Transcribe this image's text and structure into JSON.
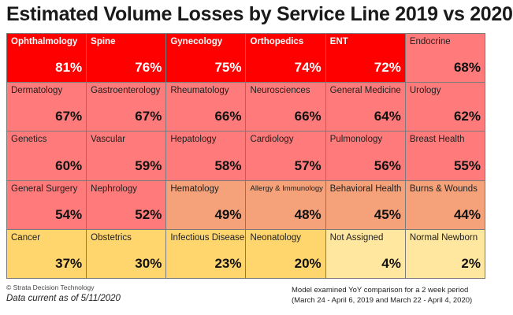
{
  "chart_data": {
    "type": "heatmap",
    "title": "Estimated Volume Losses by Service Line 2019 vs 2020",
    "cells": [
      {
        "label": "Ophthalmology",
        "value": 81,
        "display": "81%",
        "color": "#ff0000"
      },
      {
        "label": "Spine",
        "value": 76,
        "display": "76%",
        "color": "#ff0000"
      },
      {
        "label": "Gynecology",
        "value": 75,
        "display": "75%",
        "color": "#ff0000"
      },
      {
        "label": "Orthopedics",
        "value": 74,
        "display": "74%",
        "color": "#ff0000"
      },
      {
        "label": "ENT",
        "value": 72,
        "display": "72%",
        "color": "#ff0000"
      },
      {
        "label": "Endocrine",
        "value": 68,
        "display": "68%",
        "color": "#ff7a7a"
      },
      {
        "label": "Dermatology",
        "value": 67,
        "display": "67%",
        "color": "#ff7a7a"
      },
      {
        "label": "Gastroenterology",
        "value": 67,
        "display": "67%",
        "color": "#ff7a7a"
      },
      {
        "label": "Rheumatology",
        "value": 66,
        "display": "66%",
        "color": "#ff7a7a"
      },
      {
        "label": "Neurosciences",
        "value": 66,
        "display": "66%",
        "color": "#ff7a7a"
      },
      {
        "label": "General Medicine",
        "value": 64,
        "display": "64%",
        "color": "#ff7a7a"
      },
      {
        "label": "Urology",
        "value": 62,
        "display": "62%",
        "color": "#ff7a7a"
      },
      {
        "label": "Genetics",
        "value": 60,
        "display": "60%",
        "color": "#ff7a7a"
      },
      {
        "label": "Vascular",
        "value": 59,
        "display": "59%",
        "color": "#ff7a7a"
      },
      {
        "label": "Hepatology",
        "value": 58,
        "display": "58%",
        "color": "#ff7a7a"
      },
      {
        "label": "Cardiology",
        "value": 57,
        "display": "57%",
        "color": "#ff7a7a"
      },
      {
        "label": "Pulmonology",
        "value": 56,
        "display": "56%",
        "color": "#ff7a7a"
      },
      {
        "label": "Breast Health",
        "value": 55,
        "display": "55%",
        "color": "#ff7a7a"
      },
      {
        "label": "General Surgery",
        "value": 54,
        "display": "54%",
        "color": "#ff7a7a"
      },
      {
        "label": "Nephrology",
        "value": 52,
        "display": "52%",
        "color": "#ff7a7a"
      },
      {
        "label": "Hematology",
        "value": 49,
        "display": "49%",
        "color": "#f5a27a"
      },
      {
        "label": "Allergy & Immunology",
        "value": 48,
        "display": "48%",
        "color": "#f5a27a"
      },
      {
        "label": "Behavioral Health",
        "value": 45,
        "display": "45%",
        "color": "#f5a27a"
      },
      {
        "label": "Burns & Wounds",
        "value": 44,
        "display": "44%",
        "color": "#f5a27a"
      },
      {
        "label": "Cancer",
        "value": 37,
        "display": "37%",
        "color": "#ffd56e"
      },
      {
        "label": "Obstetrics",
        "value": 30,
        "display": "30%",
        "color": "#ffd56e"
      },
      {
        "label": "Infectious Disease",
        "value": 23,
        "display": "23%",
        "color": "#ffd56e"
      },
      {
        "label": "Neonatology",
        "value": 20,
        "display": "20%",
        "color": "#ffd56e"
      },
      {
        "label": "Not Assigned",
        "value": 4,
        "display": "4%",
        "color": "#ffe7a0"
      },
      {
        "label": "Normal Newborn",
        "value": 2,
        "display": "2%",
        "color": "#ffe7a0"
      }
    ]
  },
  "footer": {
    "copyright": "© Strata Decision Technology",
    "data_current": "Data current as of 5/11/2020",
    "note_line1": "Model examined YoY comparison for a  2 week period",
    "note_line2": "(March 24 - April 6, 2019 and March 22 - April 4, 2020)"
  }
}
